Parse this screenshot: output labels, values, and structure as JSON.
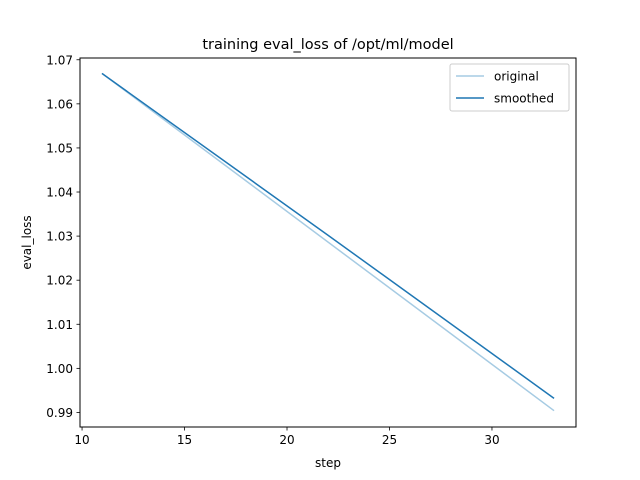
{
  "chart_data": {
    "type": "line",
    "title": "training eval_loss of /opt/ml/model",
    "xlabel": "step",
    "ylabel": "eval_loss",
    "xlim": [
      9.9,
      34.1
    ],
    "ylim": [
      0.9867,
      1.0704
    ],
    "xticks": [
      10,
      15,
      20,
      25,
      30
    ],
    "yticks": [
      0.99,
      1.0,
      1.01,
      1.02,
      1.03,
      1.04,
      1.05,
      1.06,
      1.07
    ],
    "ytick_labels": [
      "0.99",
      "1.00",
      "1.01",
      "1.02",
      "1.03",
      "1.04",
      "1.05",
      "1.06",
      "1.07"
    ],
    "grid": false,
    "legend_position": "top-right",
    "series": [
      {
        "name": "original",
        "color": "#a6cbe3",
        "x": [
          11,
          33
        ],
        "y": [
          1.0668,
          0.9905
        ]
      },
      {
        "name": "smoothed",
        "color": "#1f77b4",
        "x": [
          11,
          22,
          33
        ],
        "y": [
          1.0668,
          1.0302,
          0.9933
        ]
      }
    ]
  }
}
